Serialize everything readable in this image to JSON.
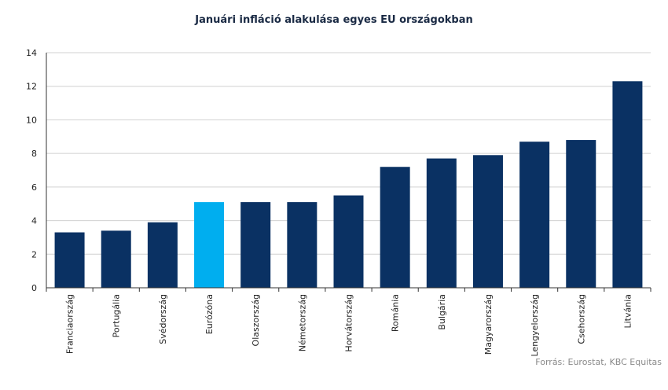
{
  "chart_data": {
    "type": "bar",
    "title": "Januári infláció alakulása egyes EU országokban",
    "xlabel": "",
    "ylabel": "",
    "categories": [
      "Franciaország",
      "Portugália",
      "Svédország",
      "Eurózóna",
      "Olaszország",
      "Németország",
      "Horvátország",
      "Románia",
      "Bulgária",
      "Magyarország",
      "Lengyelország",
      "Csehország",
      "Litvánia"
    ],
    "values": [
      3.3,
      3.4,
      3.9,
      5.1,
      5.1,
      5.1,
      5.5,
      7.2,
      7.7,
      7.9,
      8.7,
      8.8,
      12.3
    ],
    "ylim": [
      0,
      14
    ],
    "yticks": [
      0,
      2,
      4,
      6,
      8,
      10,
      12,
      14
    ],
    "grid": true,
    "legend": "none",
    "colors": {
      "bar": "#0a3163",
      "highlight": "#00aeef",
      "grid": "#d0d0d0",
      "axis": "#333333"
    },
    "highlight_category": "Eurózóna",
    "source": "Forrás: Eurostat, KBC Equitas"
  }
}
